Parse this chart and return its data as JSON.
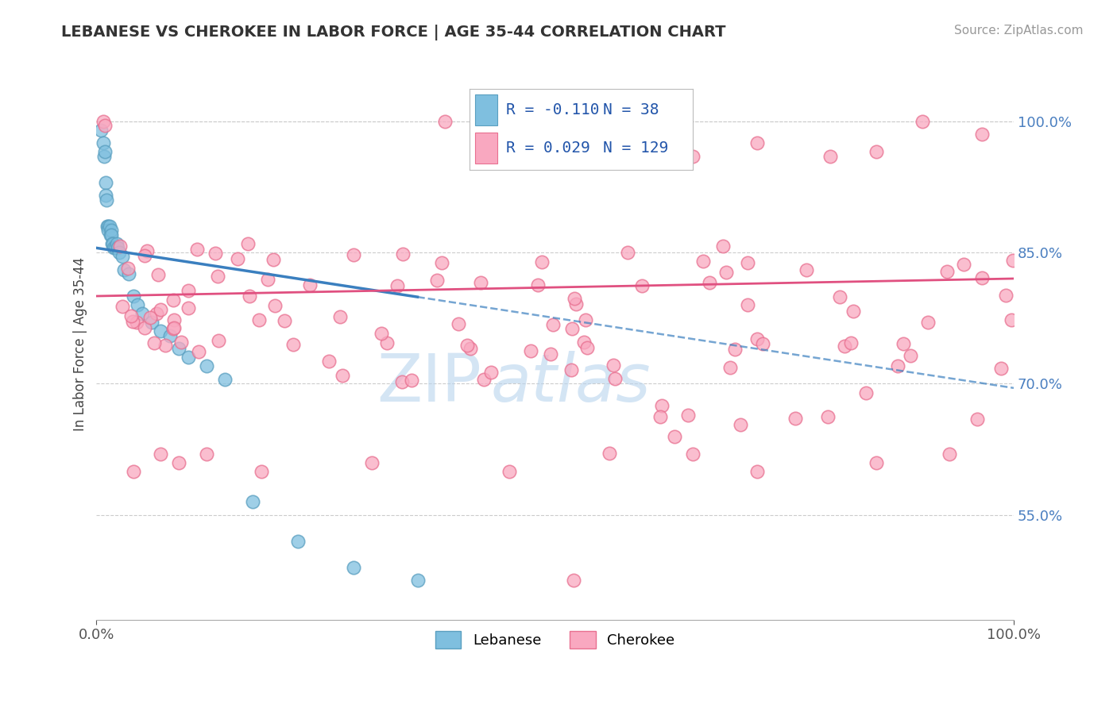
{
  "title": "LEBANESE VS CHEROKEE IN LABOR FORCE | AGE 35-44 CORRELATION CHART",
  "source": "Source: ZipAtlas.com",
  "ylabel": "In Labor Force | Age 35-44",
  "xlim": [
    0.0,
    1.0
  ],
  "ylim": [
    0.43,
    1.06
  ],
  "right_yticks": [
    0.55,
    0.7,
    0.85,
    1.0
  ],
  "right_yticklabels": [
    "55.0%",
    "70.0%",
    "85.0%",
    "100.0%"
  ],
  "legend_r_lebanese": "-0.110",
  "legend_n_lebanese": "38",
  "legend_r_cherokee": "0.029",
  "legend_n_cherokee": "129",
  "lebanese_color": "#7fbfdf",
  "cherokee_color": "#f9a8c0",
  "lebanese_edge_color": "#5a9fc0",
  "cherokee_edge_color": "#e87090",
  "lebanese_line_color": "#3a7fbf",
  "cherokee_line_color": "#e05080",
  "watermark": "ZIP atlas",
  "watermark_color": "#b8d4ee",
  "title_fontsize": 14,
  "source_fontsize": 11,
  "tick_fontsize": 13,
  "legend_fontsize": 14,
  "leb_line_start_y": 0.855,
  "leb_line_end_y": 0.695,
  "cher_line_start_y": 0.8,
  "cher_line_end_y": 0.82
}
